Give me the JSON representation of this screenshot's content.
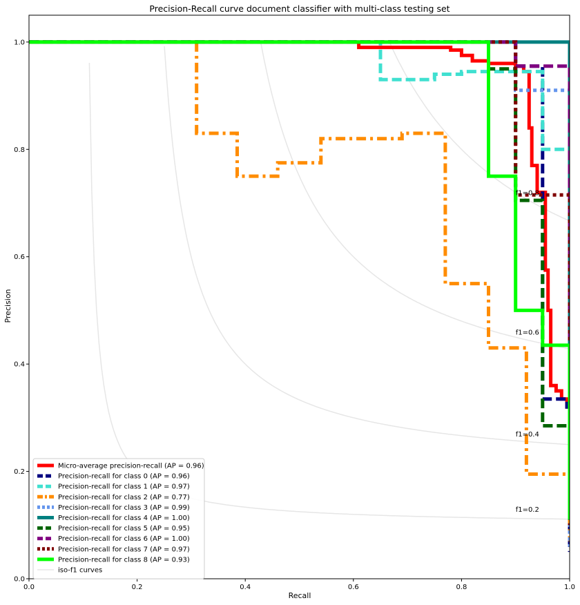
{
  "chart_data": {
    "type": "line",
    "title": "Precision-Recall curve document classifier with multi-class testing set",
    "xlabel": "Recall",
    "ylabel": "Precision",
    "xlim": [
      0,
      1
    ],
    "ylim": [
      0,
      1.05
    ],
    "xticks": [
      "0.0",
      "0.2",
      "0.4",
      "0.6",
      "0.8",
      "1.0"
    ],
    "yticks": [
      "0.0",
      "0.2",
      "0.4",
      "0.6",
      "0.8",
      "1.0"
    ],
    "grid": false,
    "legend_position": "lower-left",
    "iso_f1": {
      "legend": "iso-f1 curves",
      "color": "#e6e6e6",
      "levels": [
        0.2,
        0.4,
        0.6,
        0.8
      ],
      "labels": [
        "f1=0.2",
        "f1=0.4",
        "f1=0.6",
        "f1=0.8"
      ],
      "label_points": [
        [
          0.9,
          0.13
        ],
        [
          0.9,
          0.27
        ],
        [
          0.9,
          0.46
        ],
        [
          0.9,
          0.72
        ]
      ]
    },
    "series": [
      {
        "name": "Micro-average precision-recall (AP = 0.96)",
        "color": "#ff0000",
        "dash": "solid",
        "points": [
          [
            0,
            1
          ],
          [
            0.61,
            1
          ],
          [
            0.61,
            0.99
          ],
          [
            0.78,
            0.99
          ],
          [
            0.78,
            0.985
          ],
          [
            0.8,
            0.985
          ],
          [
            0.8,
            0.975
          ],
          [
            0.82,
            0.975
          ],
          [
            0.82,
            0.965
          ],
          [
            0.85,
            0.965
          ],
          [
            0.85,
            0.96
          ],
          [
            0.9,
            0.96
          ],
          [
            0.9,
            0.955
          ],
          [
            0.915,
            0.955
          ],
          [
            0.915,
            0.945
          ],
          [
            0.925,
            0.945
          ],
          [
            0.925,
            0.84
          ],
          [
            0.93,
            0.84
          ],
          [
            0.93,
            0.77
          ],
          [
            0.94,
            0.77
          ],
          [
            0.94,
            0.72
          ],
          [
            0.955,
            0.72
          ],
          [
            0.955,
            0.575
          ],
          [
            0.96,
            0.575
          ],
          [
            0.96,
            0.5
          ],
          [
            0.965,
            0.5
          ],
          [
            0.965,
            0.36
          ],
          [
            0.975,
            0.36
          ],
          [
            0.975,
            0.35
          ],
          [
            0.985,
            0.35
          ],
          [
            0.985,
            0.335
          ],
          [
            0.995,
            0.335
          ],
          [
            0.995,
            0.32
          ],
          [
            1,
            0.32
          ],
          [
            1,
            0.12
          ]
        ]
      },
      {
        "name": "Precision-recall for class 0 (AP = 0.96)",
        "color": "#000080",
        "dash": "dashed",
        "points": [
          [
            0,
            1
          ],
          [
            0.9,
            1
          ],
          [
            0.9,
            0.955
          ],
          [
            0.95,
            0.955
          ],
          [
            0.95,
            0.335
          ],
          [
            0.995,
            0.335
          ],
          [
            0.995,
            0.32
          ],
          [
            1,
            0.32
          ],
          [
            1,
            0.05
          ]
        ]
      },
      {
        "name": "Precision-recall for class 1 (AP = 0.97)",
        "color": "#40e0d0",
        "dash": "dashed",
        "points": [
          [
            0,
            1
          ],
          [
            0.65,
            1
          ],
          [
            0.65,
            0.93
          ],
          [
            0.75,
            0.93
          ],
          [
            0.75,
            0.94
          ],
          [
            0.8,
            0.94
          ],
          [
            0.8,
            0.945
          ],
          [
            0.95,
            0.945
          ],
          [
            0.95,
            0.8
          ],
          [
            1,
            0.8
          ],
          [
            1,
            0.1
          ]
        ]
      },
      {
        "name": "Precision-recall for class 2 (AP = 0.77)",
        "color": "#ff8c00",
        "dash": "dashdot",
        "points": [
          [
            0.31,
            1
          ],
          [
            0.31,
            0.83
          ],
          [
            0.385,
            0.83
          ],
          [
            0.385,
            0.75
          ],
          [
            0.46,
            0.75
          ],
          [
            0.46,
            0.775
          ],
          [
            0.54,
            0.775
          ],
          [
            0.54,
            0.82
          ],
          [
            0.69,
            0.82
          ],
          [
            0.69,
            0.83
          ],
          [
            0.77,
            0.83
          ],
          [
            0.77,
            0.55
          ],
          [
            0.85,
            0.55
          ],
          [
            0.85,
            0.43
          ],
          [
            0.92,
            0.43
          ],
          [
            0.92,
            0.195
          ],
          [
            1,
            0.195
          ],
          [
            1,
            0.07
          ]
        ]
      },
      {
        "name": "Precision-recall for class 3 (AP = 0.99)",
        "color": "#6495ed",
        "dash": "dotted",
        "points": [
          [
            0,
            1
          ],
          [
            0.9,
            1
          ],
          [
            0.9,
            0.91
          ],
          [
            1,
            0.91
          ],
          [
            1,
            0.06
          ]
        ]
      },
      {
        "name": "Precision-recall for class 4 (AP = 1.00)",
        "color": "#008080",
        "dash": "solid",
        "points": [
          [
            0,
            1
          ],
          [
            1,
            1
          ],
          [
            1,
            0.11
          ]
        ]
      },
      {
        "name": "Precision-recall for class 5 (AP = 0.95)",
        "color": "#006400",
        "dash": "dashed",
        "points": [
          [
            0,
            1
          ],
          [
            0.85,
            1
          ],
          [
            0.85,
            0.95
          ],
          [
            0.9,
            0.95
          ],
          [
            0.9,
            0.705
          ],
          [
            0.95,
            0.705
          ],
          [
            0.95,
            0.285
          ],
          [
            1,
            0.285
          ],
          [
            1,
            0.1
          ]
        ]
      },
      {
        "name": "Precision-recall for class 6 (AP = 1.00)",
        "color": "#800080",
        "dash": "dashed",
        "points": [
          [
            0,
            1
          ],
          [
            0.9,
            1
          ],
          [
            0.9,
            0.955
          ],
          [
            1,
            0.955
          ],
          [
            1,
            0.1
          ]
        ]
      },
      {
        "name": "Precision-recall for class 7 (AP = 0.97)",
        "color": "#800000",
        "dash": "dotted",
        "points": [
          [
            0,
            1
          ],
          [
            0.9,
            1
          ],
          [
            0.9,
            0.715
          ],
          [
            1,
            0.715
          ],
          [
            1,
            0.1
          ]
        ]
      },
      {
        "name": "Precision-recall for class 8 (AP = 0.93)",
        "color": "#00ff00",
        "dash": "solid",
        "points": [
          [
            0,
            1
          ],
          [
            0.85,
            1
          ],
          [
            0.85,
            0.75
          ],
          [
            0.9,
            0.75
          ],
          [
            0.9,
            0.5
          ],
          [
            0.95,
            0.5
          ],
          [
            0.95,
            0.435
          ],
          [
            1,
            0.435
          ],
          [
            1,
            0.11
          ]
        ]
      }
    ]
  }
}
